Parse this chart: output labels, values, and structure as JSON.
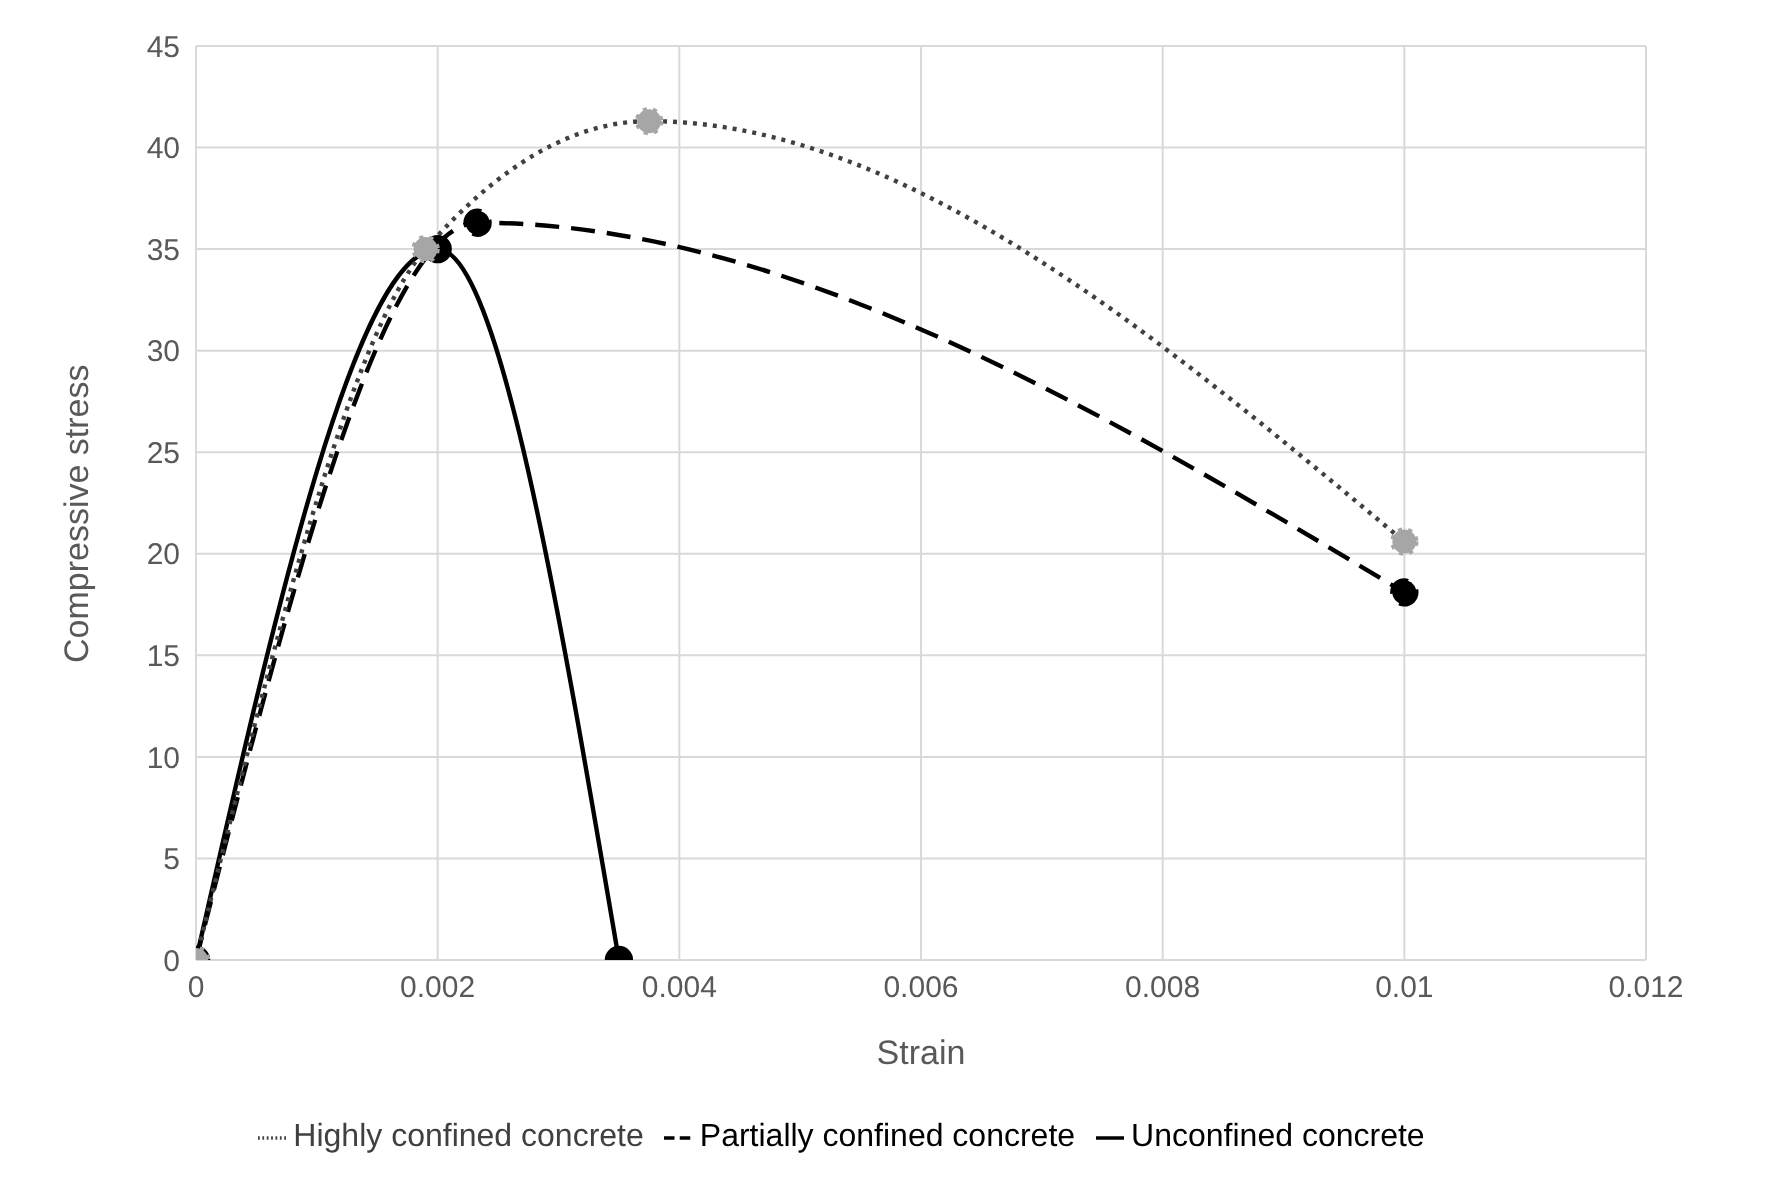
{
  "chart_data": {
    "type": "line",
    "xlabel": "Strain",
    "ylabel": "Compressive stress",
    "xlim": [
      0,
      0.012
    ],
    "xticks": [
      0,
      0.002,
      0.004,
      0.006,
      0.008,
      0.01,
      0.012
    ],
    "ylim": [
      0,
      45
    ],
    "yticks": [
      0,
      5,
      10,
      15,
      20,
      25,
      30,
      35,
      40,
      45
    ],
    "grid": true,
    "legend": "bottom",
    "marker": "circle",
    "series": [
      {
        "name": "Unconfined concrete",
        "color": "#000000",
        "line_style": "solid",
        "x": [
          0,
          0.002,
          0.0035
        ],
        "values": [
          0,
          35,
          0
        ]
      },
      {
        "name": "Partially confined concrete",
        "color": "#000000",
        "line_style": "dashed",
        "x": [
          0,
          0.00233,
          0.01
        ],
        "values": [
          0,
          36.3,
          18.1
        ]
      },
      {
        "name": "Highly confined concrete",
        "color": "#a6a6a6",
        "line_style": "dotted",
        "x": [
          0,
          0.0019,
          0.00375,
          0.01
        ],
        "values": [
          0,
          35,
          41.3,
          20.6
        ]
      }
    ]
  }
}
